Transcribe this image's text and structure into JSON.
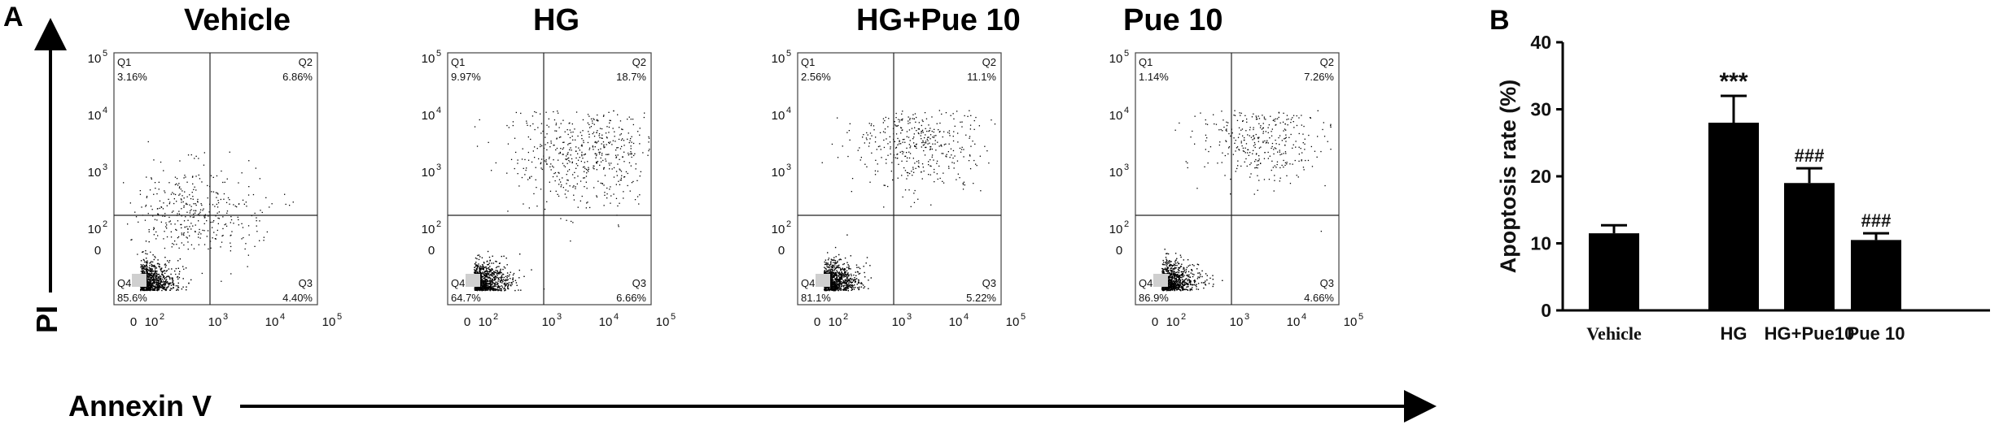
{
  "panel_a": {
    "letter": "A",
    "y_axis_label": "PI",
    "x_axis_label": "Annexin V",
    "plots": [
      {
        "title": "Vehicle",
        "q1": "3.16%",
        "q2": "6.86%",
        "q3": "4.40%",
        "q4": "85.6%"
      },
      {
        "title": "HG",
        "q1": "9.97%",
        "q2": "18.7%",
        "q3": "6.66%",
        "q4": "64.7%"
      },
      {
        "title": "HG+Pue 10",
        "q1": "2.56%",
        "q2": "11.1%",
        "q3": "5.22%",
        "q4": "81.1%"
      },
      {
        "title": "Pue 10",
        "q1": "1.14%",
        "q2": "7.26%",
        "q3": "4.66%",
        "q4": "86.9%"
      }
    ],
    "quadrant_names": [
      "Q1",
      "Q2",
      "Q3",
      "Q4"
    ],
    "y_tick_labels": [
      "10^5",
      "10^4",
      "10^3",
      "10^2",
      "0"
    ],
    "x_tick_labels": [
      "0",
      "10^2",
      "10^3",
      "10^4",
      "10^5"
    ]
  },
  "chart_data": {
    "type": "bar",
    "panel_letter": "B",
    "categories": [
      "Vehicle",
      "HG",
      "HG+Pue10",
      "Pue 10"
    ],
    "values": [
      11.5,
      28.0,
      19.0,
      10.5
    ],
    "errors": [
      1.2,
      4.0,
      2.2,
      1.0
    ],
    "significance": [
      "",
      "***",
      "###",
      "###"
    ],
    "ylabel": "Apoptosis rate (%)",
    "ylim": [
      0,
      40
    ],
    "yticks": [
      0,
      10,
      20,
      30,
      40
    ],
    "bar_color": "#000000"
  }
}
